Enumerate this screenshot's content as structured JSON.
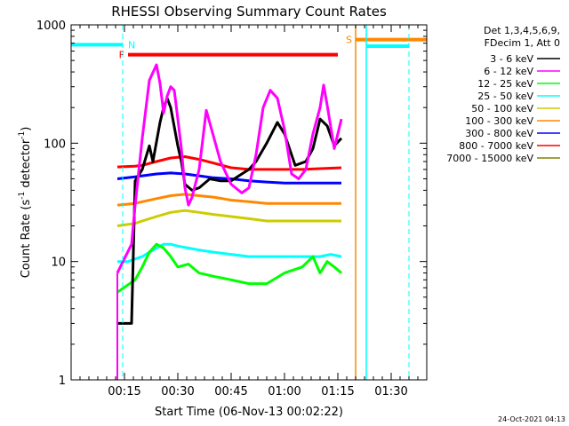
{
  "chart_data": {
    "type": "line",
    "title": "RHESSI Observing Summary Count Rates",
    "xlabel": "Start Time (06-Nov-13 00:02:22)",
    "ylabel_main": "Count Rate (s",
    "ylabel_sup1": "-1",
    "ylabel_mid": " detector",
    "ylabel_sup2": "-1",
    "ylabel_end": ")",
    "yscale": "log",
    "xlim": [
      0,
      100
    ],
    "ylim": [
      1,
      1000
    ],
    "x_units": "minutes after 00:00",
    "x_ticks": [
      {
        "x": 15,
        "label": "00:15"
      },
      {
        "x": 30,
        "label": "00:30"
      },
      {
        "x": 45,
        "label": "00:45"
      },
      {
        "x": 60,
        "label": "01:00"
      },
      {
        "x": 75,
        "label": "01:15"
      },
      {
        "x": 90,
        "label": "01:30"
      }
    ],
    "y_ticks": [
      {
        "y": 1,
        "label": "1"
      },
      {
        "y": 10,
        "label": "10"
      },
      {
        "y": 100,
        "label": "100"
      },
      {
        "y": 1000,
        "label": "1000"
      }
    ],
    "legend_header": [
      "Det 1,3,4,5,6,9,",
      "FDecim 1, Att 0"
    ],
    "series": [
      {
        "name": "3 - 6 keV",
        "color": "#000000",
        "x": [
          13,
          17,
          18,
          20,
          22,
          23,
          25,
          26,
          27,
          28,
          30,
          31,
          32,
          34,
          36,
          39,
          42,
          45,
          48,
          50,
          52,
          55,
          58,
          60,
          63,
          66,
          68,
          70,
          72,
          74,
          76
        ],
        "y": [
          3,
          3,
          48,
          60,
          95,
          70,
          150,
          200,
          240,
          200,
          95,
          70,
          45,
          40,
          42,
          50,
          48,
          48,
          55,
          60,
          70,
          100,
          150,
          120,
          65,
          70,
          90,
          160,
          140,
          95,
          110
        ]
      },
      {
        "name": "6 - 12 keV",
        "color": "#ff00ff",
        "x": [
          13,
          17,
          18,
          20,
          22,
          24,
          25,
          26,
          27,
          28,
          29,
          30,
          31,
          32,
          33,
          34,
          36,
          38,
          42,
          45,
          48,
          50,
          52,
          54,
          56,
          58,
          60,
          62,
          64,
          66,
          68,
          70,
          71,
          72,
          74,
          76
        ],
        "y": [
          8,
          14,
          30,
          110,
          340,
          460,
          320,
          180,
          250,
          300,
          280,
          160,
          90,
          42,
          30,
          35,
          60,
          190,
          70,
          45,
          38,
          42,
          80,
          200,
          280,
          240,
          130,
          55,
          50,
          60,
          120,
          200,
          310,
          210,
          90,
          160
        ]
      },
      {
        "name": "12 - 25 keV",
        "color": "#00ff00",
        "x": [
          13,
          18,
          20,
          22,
          24,
          26,
          28,
          30,
          33,
          36,
          40,
          45,
          50,
          55,
          60,
          65,
          68,
          70,
          72,
          74,
          76
        ],
        "y": [
          5.5,
          7,
          9,
          12,
          14,
          13,
          11,
          9,
          9.5,
          8,
          7.5,
          7,
          6.5,
          6.5,
          8,
          9,
          11,
          8,
          10,
          9,
          8
        ]
      },
      {
        "name": "25 - 50 keV",
        "color": "#00ffff",
        "x": [
          13,
          16,
          18,
          20,
          22,
          24,
          26,
          28,
          30,
          33,
          36,
          40,
          45,
          50,
          55,
          60,
          65,
          70,
          73,
          76
        ],
        "y": [
          10,
          10,
          10.5,
          11,
          12,
          13,
          14,
          14,
          13.5,
          13,
          12.5,
          12,
          11.5,
          11,
          11,
          11,
          11,
          11,
          11.5,
          11
        ]
      },
      {
        "name": "50 - 100 keV",
        "color": "#cccc00",
        "x": [
          13,
          18,
          20,
          24,
          28,
          32,
          36,
          40,
          45,
          50,
          55,
          60,
          65,
          70,
          76
        ],
        "y": [
          20,
          21,
          22,
          24,
          26,
          27,
          26,
          25,
          24,
          23,
          22,
          22,
          22,
          22,
          22
        ]
      },
      {
        "name": "100 - 300 keV",
        "color": "#ff8800",
        "x": [
          13,
          18,
          20,
          24,
          28,
          32,
          36,
          40,
          45,
          50,
          55,
          60,
          65,
          70,
          76
        ],
        "y": [
          30,
          31,
          32,
          34,
          36,
          37,
          36,
          35,
          33,
          32,
          31,
          31,
          31,
          31,
          31
        ]
      },
      {
        "name": "300 - 800 keV",
        "color": "#0000ff",
        "x": [
          13,
          18,
          20,
          24,
          28,
          32,
          36,
          40,
          45,
          50,
          55,
          60,
          65,
          70,
          76
        ],
        "y": [
          50,
          52,
          53,
          55,
          56,
          55,
          53,
          51,
          50,
          48,
          47,
          46,
          46,
          46,
          46
        ]
      },
      {
        "name": "800 - 7000 keV",
        "color": "#ff0000",
        "x": [
          13,
          18,
          20,
          24,
          28,
          32,
          36,
          40,
          45,
          50,
          55,
          60,
          65,
          70,
          76
        ],
        "y": [
          63,
          64,
          65,
          70,
          75,
          77,
          73,
          68,
          62,
          60,
          60,
          60,
          60,
          61,
          62
        ]
      },
      {
        "name": "7000 - 15000 keV",
        "color": "#808000",
        "x": [],
        "y": []
      }
    ],
    "flags": [
      {
        "label": "N",
        "color": "#00ffff",
        "x_start": 0,
        "x_end": 14.5,
        "y": 680
      },
      {
        "label": "F",
        "color": "#ff0000",
        "x_start": 16,
        "x_end": 75,
        "y": 560
      },
      {
        "label": "S",
        "color": "#ff8800",
        "x_start": 80,
        "x_end": 100,
        "y": 750
      },
      {
        "label": "",
        "color": "#00ffff",
        "x_start": 83,
        "x_end": 95,
        "y": 660
      }
    ],
    "vlines": [
      {
        "x": 14.5,
        "color": "#00ffff",
        "dashed": true
      },
      {
        "x": 80,
        "color": "#ff8800",
        "dashed": false
      },
      {
        "x": 83,
        "color": "#00ffff",
        "dashed": false
      },
      {
        "x": 95,
        "color": "#00ffff",
        "dashed": true
      }
    ],
    "grid": false,
    "legend_position": "right"
  },
  "footer": {
    "timestamp": "24-Oct-2021 04:13"
  }
}
